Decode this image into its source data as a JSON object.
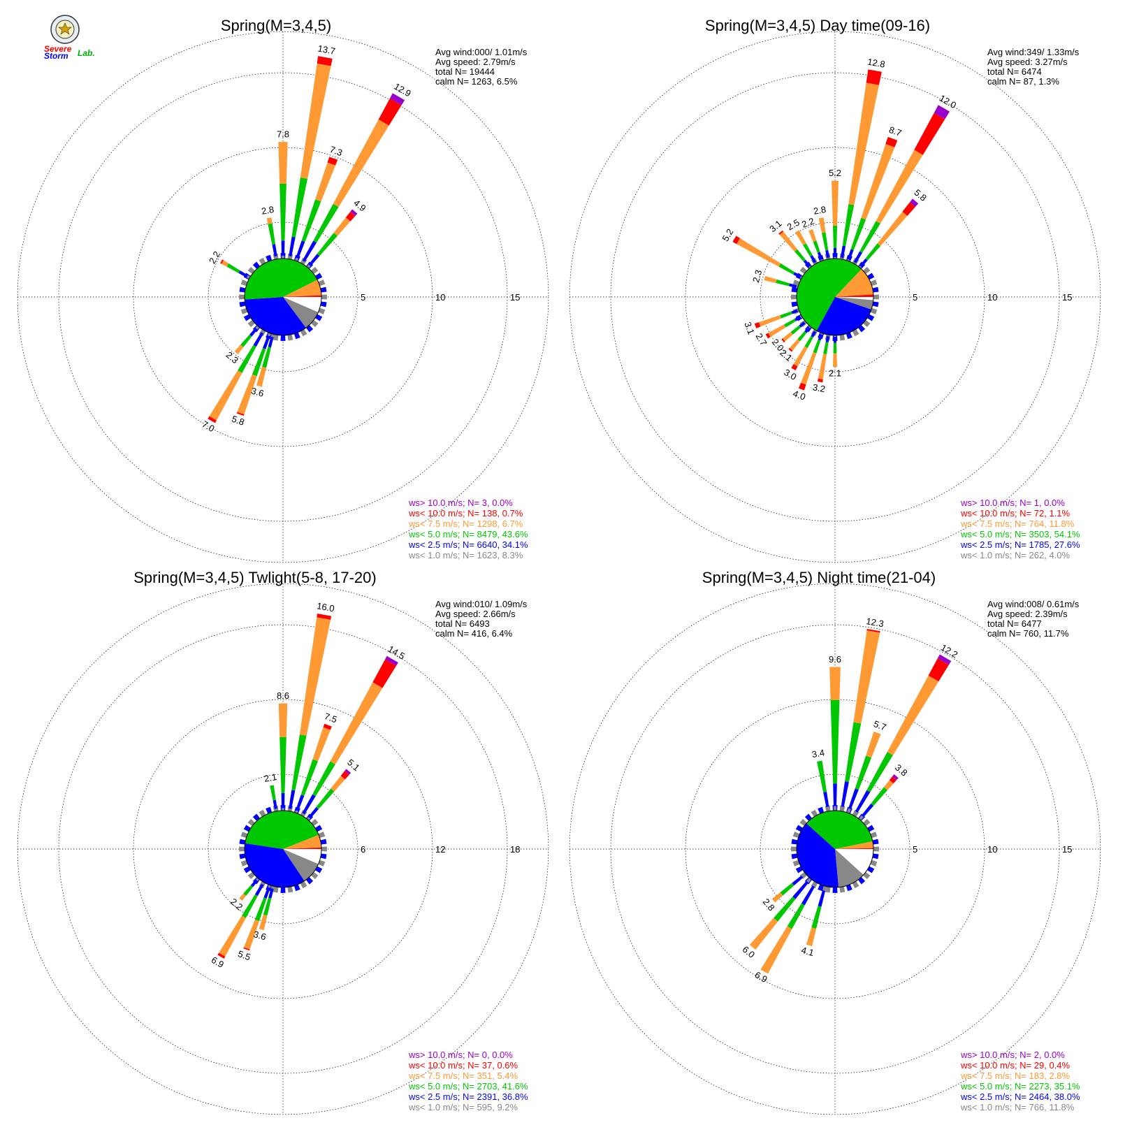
{
  "logo": {
    "severe": "Severe",
    "storm": "Storm",
    "lab": "Lab."
  },
  "colors": {
    "calm": "#ffffff",
    "c1": "#888888",
    "c2": "#0000ff",
    "c3": "#00c800",
    "c4": "#ff9933",
    "c5": "#ff0000",
    "c6": "#9900cc"
  },
  "chart_data": [
    {
      "type": "wind-rose",
      "title": "Spring(M=3,4,5)",
      "ring_labels": [
        "5",
        "10",
        "15"
      ],
      "rmax": 15,
      "info": [
        "Avg wind:000/ 1.01m/s",
        "Avg speed: 2.79m/s",
        "total N=      19444",
        "calm N=   1263,   6.5%"
      ],
      "legend": [
        {
          "text": "ws> 10.0 m/s; N=     3,  0.0%",
          "color": "#9900cc"
        },
        {
          "text": "ws< 10.0 m/s; N=   138,  0.7%",
          "color": "#ff0000"
        },
        {
          "text": "ws<  7.5 m/s; N=  1298,  6.7%",
          "color": "#ff9933"
        },
        {
          "text": "ws<  5.0 m/s; N=  8479, 43.6%",
          "color": "#00c800"
        },
        {
          "text": "ws<  2.5 m/s; N=  6640, 34.1%",
          "color": "#0000ff"
        },
        {
          "text": "ws<  1.0 m/s; N=  1623,  8.3%",
          "color": "#888888"
        }
      ],
      "inner_pie": [
        6.5,
        8.3,
        34.1,
        43.6,
        6.7,
        0.7
      ],
      "bars": [
        {
          "dir": 0,
          "total": 7.8,
          "label": "7.8",
          "seg": [
            0.2,
            1.0,
            3.8,
            2.8,
            0,
            0
          ]
        },
        {
          "dir": 10,
          "total": 13.7,
          "label": "13.7",
          "seg": [
            0.2,
            1.3,
            4.0,
            7.7,
            0.5,
            0
          ]
        },
        {
          "dir": 20,
          "total": 7.3,
          "label": "7.3",
          "seg": [
            0.2,
            1.2,
            2.9,
            2.6,
            0.4,
            0
          ]
        },
        {
          "dir": 30,
          "total": 12.9,
          "label": "12.9",
          "seg": [
            0.2,
            1.5,
            2.8,
            6.4,
            1.6,
            0.4
          ]
        },
        {
          "dir": 40,
          "total": 4.9,
          "label": "4.9",
          "seg": [
            0.2,
            0.9,
            1.8,
            1.3,
            0.5,
            0.2
          ]
        },
        {
          "dir": 350,
          "total": 2.8,
          "label": "2.8",
          "seg": [
            0.2,
            0.8,
            1.4,
            0.4,
            0,
            0
          ]
        },
        {
          "dir": 300,
          "total": 2.2,
          "label": "2.2",
          "seg": [
            0.2,
            0.6,
            0.9,
            0.4,
            0.1,
            0
          ]
        },
        {
          "dir": 210,
          "total": 7.0,
          "label": "7.0",
          "seg": [
            0.2,
            1.0,
            2.0,
            3.6,
            0.2,
            0
          ]
        },
        {
          "dir": 200,
          "total": 5.8,
          "label": "5.8",
          "seg": [
            0.2,
            0.9,
            1.9,
            2.7,
            0.1,
            0
          ]
        },
        {
          "dir": 195,
          "total": 3.6,
          "label": "3.6",
          "seg": [
            0.2,
            0.7,
            1.4,
            1.3,
            0,
            0
          ]
        },
        {
          "dir": 220,
          "total": 2.3,
          "label": "2.3",
          "seg": [
            0.2,
            0.6,
            0.9,
            0.6,
            0,
            0
          ]
        }
      ]
    },
    {
      "type": "wind-rose",
      "title": "Spring(M=3,4,5) Day time(09-16)",
      "ring_labels": [
        "5",
        "10",
        "15"
      ],
      "rmax": 15,
      "info": [
        "Avg wind:349/ 1.33m/s",
        "Avg speed: 3.27m/s",
        "total N=       6474",
        "calm N=     87,   1.3%"
      ],
      "legend": [
        {
          "text": "ws> 10.0 m/s; N=     1,  0.0%",
          "color": "#9900cc"
        },
        {
          "text": "ws< 10.0 m/s; N=    72,  1.1%",
          "color": "#ff0000"
        },
        {
          "text": "ws<  7.5 m/s; N=   764, 11.8%",
          "color": "#ff9933"
        },
        {
          "text": "ws<  5.0 m/s; N=  3503, 54.1%",
          "color": "#00c800"
        },
        {
          "text": "ws<  2.5 m/s; N=  1785, 27.6%",
          "color": "#0000ff"
        },
        {
          "text": "ws<  1.0 m/s; N=   262,  4.0%",
          "color": "#888888"
        }
      ],
      "inner_pie": [
        1.3,
        4.0,
        27.6,
        54.1,
        11.8,
        1.1
      ],
      "bars": [
        {
          "dir": 0,
          "total": 5.2,
          "label": "5.2",
          "seg": [
            0.1,
            0.6,
            1.5,
            3.0,
            0,
            0
          ]
        },
        {
          "dir": 10,
          "total": 12.8,
          "label": "12.8",
          "seg": [
            0.1,
            0.8,
            2.8,
            8.2,
            0.9,
            0
          ]
        },
        {
          "dir": 20,
          "total": 8.7,
          "label": "8.7",
          "seg": [
            0.1,
            0.7,
            2.2,
            5.2,
            0.5,
            0
          ]
        },
        {
          "dir": 30,
          "total": 12.0,
          "label": "12.0",
          "seg": [
            0.1,
            0.8,
            2.3,
            5.4,
            2.8,
            0.6
          ]
        },
        {
          "dir": 40,
          "total": 5.8,
          "label": "5.8",
          "seg": [
            0.1,
            0.6,
            1.3,
            2.7,
            0.8,
            0.3
          ]
        },
        {
          "dir": 350,
          "total": 2.8,
          "label": "2.8",
          "seg": [
            0.1,
            0.5,
            1.2,
            1.0,
            0,
            0
          ]
        },
        {
          "dir": 340,
          "total": 2.2,
          "label": "2.2",
          "seg": [
            0.1,
            0.5,
            0.8,
            0.8,
            0,
            0
          ]
        },
        {
          "dir": 330,
          "total": 2.5,
          "label": "2.5",
          "seg": [
            0.1,
            0.5,
            0.9,
            1.0,
            0,
            0
          ]
        },
        {
          "dir": 320,
          "total": 3.1,
          "label": "3.1",
          "seg": [
            0.1,
            0.5,
            0.9,
            1.5,
            0.1,
            0
          ]
        },
        {
          "dir": 300,
          "total": 5.2,
          "label": "5.2",
          "seg": [
            0.1,
            0.5,
            1.1,
            3.2,
            0.3,
            0
          ]
        },
        {
          "dir": 285,
          "total": 2.3,
          "label": "2.3",
          "seg": [
            0.1,
            0.5,
            0.9,
            0.8,
            0,
            0
          ]
        },
        {
          "dir": 250,
          "total": 3.1,
          "label": "3.1",
          "seg": [
            0.1,
            0.4,
            0.8,
            1.5,
            0.3,
            0
          ]
        },
        {
          "dir": 240,
          "total": 2.7,
          "label": "2.7",
          "seg": [
            0.1,
            0.4,
            0.8,
            1.2,
            0.2,
            0
          ]
        },
        {
          "dir": 230,
          "total": 2.0,
          "label": "2.0",
          "seg": [
            0.1,
            0.4,
            0.7,
            0.7,
            0.1,
            0
          ]
        },
        {
          "dir": 220,
          "total": 2.1,
          "label": "2.1",
          "seg": [
            0.1,
            0.4,
            0.7,
            0.8,
            0.1,
            0
          ]
        },
        {
          "dir": 210,
          "total": 3.0,
          "label": "3.0",
          "seg": [
            0.1,
            0.4,
            0.8,
            1.4,
            0.3,
            0
          ]
        },
        {
          "dir": 200,
          "total": 4.0,
          "label": "4.0",
          "seg": [
            0.1,
            0.4,
            0.9,
            2.2,
            0.4,
            0
          ]
        },
        {
          "dir": 190,
          "total": 3.2,
          "label": "3.2",
          "seg": [
            0.1,
            0.4,
            0.8,
            1.7,
            0.2,
            0
          ]
        },
        {
          "dir": 180,
          "total": 2.1,
          "label": "2.1",
          "seg": [
            0.1,
            0.4,
            0.7,
            0.9,
            0,
            0
          ]
        }
      ]
    },
    {
      "type": "wind-rose",
      "title": "Spring(M=3,4,5) Twlight(5-8, 17-20)",
      "ring_labels": [
        "6",
        "12",
        "18"
      ],
      "rmax": 18,
      "info": [
        "Avg wind:010/ 1.09m/s",
        "Avg speed: 2.66m/s",
        "total N=       6493",
        "calm N=    416,   6.4%"
      ],
      "legend": [
        {
          "text": "ws> 10.0 m/s; N=     0,  0.0%",
          "color": "#9900cc"
        },
        {
          "text": "ws< 10.0 m/s; N=    37,  0.6%",
          "color": "#ff0000"
        },
        {
          "text": "ws<  7.5 m/s; N=   351,  5.4%",
          "color": "#ff9933"
        },
        {
          "text": "ws<  5.0 m/s; N=  2703, 41.6%",
          "color": "#00c800"
        },
        {
          "text": "ws<  2.5 m/s; N=  2391, 36.8%",
          "color": "#0000ff"
        },
        {
          "text": "ws<  1.0 m/s; N=   595,  9.2%",
          "color": "#888888"
        }
      ],
      "inner_pie": [
        6.4,
        9.2,
        36.8,
        41.6,
        5.4,
        0.6
      ],
      "bars": [
        {
          "dir": 0,
          "total": 8.6,
          "label": "8.6",
          "seg": [
            0.2,
            1.2,
            4.5,
            2.7,
            0,
            0
          ]
        },
        {
          "dir": 10,
          "total": 16.0,
          "label": "16.0",
          "seg": [
            0.2,
            1.5,
            4.5,
            9.5,
            0.3,
            0
          ]
        },
        {
          "dir": 20,
          "total": 7.5,
          "label": "7.5",
          "seg": [
            0.2,
            1.3,
            3.0,
            2.7,
            0.3,
            0
          ]
        },
        {
          "dir": 30,
          "total": 14.5,
          "label": "14.5",
          "seg": [
            0.2,
            1.7,
            3.0,
            7.2,
            2.1,
            0.3
          ]
        },
        {
          "dir": 40,
          "total": 5.1,
          "label": "5.1",
          "seg": [
            0.2,
            1.0,
            1.9,
            1.3,
            0.5,
            0.2
          ]
        },
        {
          "dir": 350,
          "total": 2.1,
          "label": "2.1",
          "seg": [
            0.2,
            0.7,
            1.2,
            0,
            0,
            0
          ]
        },
        {
          "dir": 210,
          "total": 6.9,
          "label": "6.9",
          "seg": [
            0.2,
            1.0,
            2.0,
            3.5,
            0.2,
            0
          ]
        },
        {
          "dir": 200,
          "total": 5.5,
          "label": "5.5",
          "seg": [
            0.2,
            0.9,
            1.9,
            2.4,
            0.1,
            0
          ]
        },
        {
          "dir": 195,
          "total": 3.6,
          "label": "3.6",
          "seg": [
            0.2,
            0.8,
            1.4,
            1.2,
            0,
            0
          ]
        },
        {
          "dir": 220,
          "total": 2.2,
          "label": "2.2",
          "seg": [
            0.2,
            0.6,
            0.9,
            0.5,
            0,
            0
          ]
        }
      ]
    },
    {
      "type": "wind-rose",
      "title": "Spring(M=3,4,5) Night time(21-04)",
      "ring_labels": [
        "5",
        "10",
        "15"
      ],
      "rmax": 15,
      "info": [
        "Avg wind:008/ 0.61m/s",
        "Avg speed: 2.39m/s",
        "total N=       6477",
        "calm N=    760,  11.7%"
      ],
      "legend": [
        {
          "text": "ws> 10.0 m/s; N=     2,  0.0%",
          "color": "#9900cc"
        },
        {
          "text": "ws< 10.0 m/s; N=    29,  0.4%",
          "color": "#ff0000"
        },
        {
          "text": "ws<  7.5 m/s; N=   183,  2.8%",
          "color": "#ff9933"
        },
        {
          "text": "ws<  5.0 m/s; N=  2273, 35.1%",
          "color": "#00c800"
        },
        {
          "text": "ws<  2.5 m/s; N=  2464, 38.0%",
          "color": "#0000ff"
        },
        {
          "text": "ws<  1.0 m/s; N=   766, 11.8%",
          "color": "#888888"
        }
      ],
      "inner_pie": [
        11.7,
        11.8,
        38.0,
        35.1,
        2.8,
        0.4
      ],
      "bars": [
        {
          "dir": 0,
          "total": 9.6,
          "label": "9.6",
          "seg": [
            0.3,
            1.5,
            5.6,
            2.2,
            0,
            0
          ]
        },
        {
          "dir": 10,
          "total": 12.3,
          "label": "12.3",
          "seg": [
            0.3,
            1.7,
            4.0,
            6.2,
            0.1,
            0
          ]
        },
        {
          "dir": 20,
          "total": 5.7,
          "label": "5.7",
          "seg": [
            0.3,
            1.4,
            2.3,
            1.7,
            0,
            0
          ]
        },
        {
          "dir": 30,
          "total": 12.2,
          "label": "12.2",
          "seg": [
            0.3,
            1.6,
            2.9,
            5.8,
            1.3,
            0.3
          ]
        },
        {
          "dir": 40,
          "total": 3.8,
          "label": "3.8",
          "seg": [
            0.3,
            1.0,
            1.4,
            0.6,
            0.3,
            0.2
          ]
        },
        {
          "dir": 350,
          "total": 3.4,
          "label": "3.4",
          "seg": [
            0.3,
            1.0,
            2.1,
            0,
            0,
            0
          ]
        },
        {
          "dir": 210,
          "total": 6.9,
          "label": "6.9",
          "seg": [
            0.3,
            1.4,
            1.8,
            3.4,
            0,
            0
          ]
        },
        {
          "dir": 220,
          "total": 6.0,
          "label": "6.0",
          "seg": [
            0.3,
            1.4,
            1.9,
            2.4,
            0,
            0
          ]
        },
        {
          "dir": 195,
          "total": 4.1,
          "label": "4.1",
          "seg": [
            0.3,
            1.1,
            1.5,
            1.2,
            0,
            0
          ]
        },
        {
          "dir": 230,
          "total": 2.8,
          "label": "2.8",
          "seg": [
            0.3,
            0.8,
            1.0,
            0.7,
            0,
            0
          ]
        }
      ]
    }
  ]
}
